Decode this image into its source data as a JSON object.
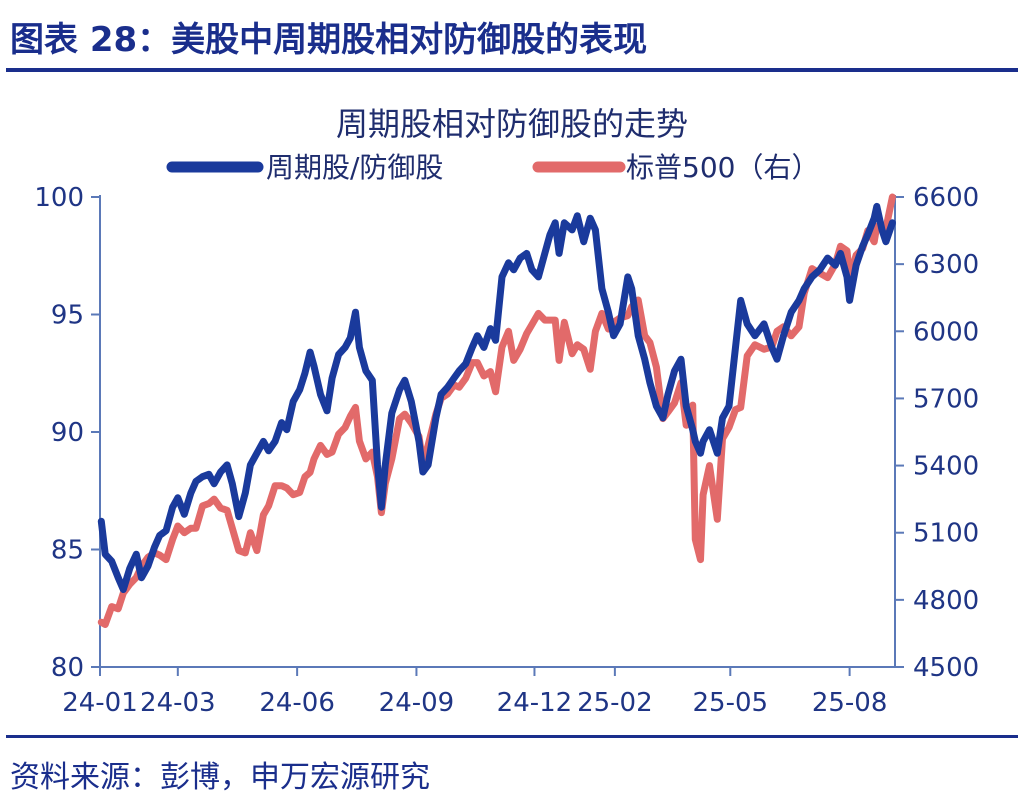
{
  "figure": {
    "title": "图表 28：美股中周期股相对防御股的表现",
    "source": "资料来源：彭博，申万宏源研究"
  },
  "chart_data": {
    "type": "line",
    "title": "周期股相对防御股的走势",
    "legend_position": "top",
    "grid": false,
    "x_axis": {
      "type": "date",
      "range": [
        "2024-01-01",
        "2025-09-05"
      ],
      "tick_labels": [
        "24-01",
        "24-03",
        "24-06",
        "24-09",
        "24-12",
        "25-02",
        "25-05",
        "25-08"
      ],
      "tick_dates": [
        "2024-01-01",
        "2024-03-01",
        "2024-06-01",
        "2024-09-01",
        "2024-12-01",
        "2025-02-01",
        "2025-05-01",
        "2025-08-01"
      ]
    },
    "y_axis_left": {
      "min": 80,
      "max": 100,
      "ticks": [
        100,
        95,
        90,
        85,
        80
      ]
    },
    "y_axis_right": {
      "min": 4500,
      "max": 6600,
      "ticks": [
        6600,
        6300,
        6000,
        5700,
        5400,
        5100,
        4800,
        4500
      ]
    },
    "series": [
      {
        "name": "周期股/防御股",
        "axis": "left",
        "color": "#1a3a9c",
        "points": [
          [
            "2024-01-02",
            86.2
          ],
          [
            "2024-01-05",
            84.8
          ],
          [
            "2024-01-10",
            84.5
          ],
          [
            "2024-01-15",
            83.8
          ],
          [
            "2024-01-19",
            83.3
          ],
          [
            "2024-01-24",
            84.2
          ],
          [
            "2024-01-29",
            84.8
          ],
          [
            "2024-02-02",
            83.8
          ],
          [
            "2024-02-07",
            84.3
          ],
          [
            "2024-02-12",
            85.1
          ],
          [
            "2024-02-16",
            85.6
          ],
          [
            "2024-02-21",
            85.8
          ],
          [
            "2024-02-26",
            86.8
          ],
          [
            "2024-03-01",
            87.2
          ],
          [
            "2024-03-06",
            86.5
          ],
          [
            "2024-03-11",
            87.4
          ],
          [
            "2024-03-15",
            87.9
          ],
          [
            "2024-03-20",
            88.1
          ],
          [
            "2024-03-25",
            88.2
          ],
          [
            "2024-03-29",
            87.8
          ],
          [
            "2024-04-03",
            88.3
          ],
          [
            "2024-04-08",
            88.6
          ],
          [
            "2024-04-12",
            87.8
          ],
          [
            "2024-04-17",
            86.4
          ],
          [
            "2024-04-22",
            87.4
          ],
          [
            "2024-04-26",
            88.6
          ],
          [
            "2024-05-01",
            89.1
          ],
          [
            "2024-05-06",
            89.6
          ],
          [
            "2024-05-10",
            89.2
          ],
          [
            "2024-05-15",
            89.6
          ],
          [
            "2024-05-20",
            90.4
          ],
          [
            "2024-05-24",
            90.1
          ],
          [
            "2024-05-29",
            91.3
          ],
          [
            "2024-06-03",
            91.8
          ],
          [
            "2024-06-07",
            92.5
          ],
          [
            "2024-06-11",
            93.4
          ],
          [
            "2024-06-14",
            92.8
          ],
          [
            "2024-06-19",
            91.6
          ],
          [
            "2024-06-24",
            90.9
          ],
          [
            "2024-06-28",
            92.3
          ],
          [
            "2024-07-03",
            93.3
          ],
          [
            "2024-07-08",
            93.6
          ],
          [
            "2024-07-12",
            94.0
          ],
          [
            "2024-07-16",
            95.1
          ],
          [
            "2024-07-19",
            93.6
          ],
          [
            "2024-07-24",
            92.6
          ],
          [
            "2024-07-29",
            92.2
          ],
          [
            "2024-08-02",
            88.6
          ],
          [
            "2024-08-05",
            86.8
          ],
          [
            "2024-08-08",
            88.6
          ],
          [
            "2024-08-13",
            90.8
          ],
          [
            "2024-08-19",
            91.8
          ],
          [
            "2024-08-23",
            92.2
          ],
          [
            "2024-08-28",
            91.3
          ],
          [
            "2024-09-03",
            89.6
          ],
          [
            "2024-09-06",
            88.3
          ],
          [
            "2024-09-10",
            88.6
          ],
          [
            "2024-09-16",
            90.6
          ],
          [
            "2024-09-20",
            91.6
          ],
          [
            "2024-09-25",
            91.9
          ],
          [
            "2024-09-30",
            92.3
          ],
          [
            "2024-10-04",
            92.6
          ],
          [
            "2024-10-09",
            92.9
          ],
          [
            "2024-10-14",
            93.6
          ],
          [
            "2024-10-18",
            94.1
          ],
          [
            "2024-10-23",
            93.6
          ],
          [
            "2024-10-28",
            94.4
          ],
          [
            "2024-11-01",
            93.9
          ],
          [
            "2024-11-06",
            96.6
          ],
          [
            "2024-11-11",
            97.2
          ],
          [
            "2024-11-15",
            96.9
          ],
          [
            "2024-11-20",
            97.4
          ],
          [
            "2024-11-25",
            97.6
          ],
          [
            "2024-11-29",
            96.9
          ],
          [
            "2024-12-04",
            96.6
          ],
          [
            "2024-12-09",
            97.6
          ],
          [
            "2024-12-13",
            98.4
          ],
          [
            "2024-12-17",
            98.9
          ],
          [
            "2024-12-20",
            97.6
          ],
          [
            "2024-12-24",
            98.9
          ],
          [
            "2024-12-30",
            98.6
          ],
          [
            "2025-01-03",
            99.2
          ],
          [
            "2025-01-08",
            98.1
          ],
          [
            "2025-01-13",
            99.1
          ],
          [
            "2025-01-17",
            98.6
          ],
          [
            "2025-01-22",
            96.1
          ],
          [
            "2025-01-27",
            95.1
          ],
          [
            "2025-01-31",
            94.1
          ],
          [
            "2025-02-05",
            94.6
          ],
          [
            "2025-02-11",
            96.6
          ],
          [
            "2025-02-14",
            96.1
          ],
          [
            "2025-02-19",
            94.1
          ],
          [
            "2025-02-24",
            93.1
          ],
          [
            "2025-02-28",
            92.1
          ],
          [
            "2025-03-05",
            91.1
          ],
          [
            "2025-03-10",
            90.6
          ],
          [
            "2025-03-14",
            91.6
          ],
          [
            "2025-03-19",
            92.6
          ],
          [
            "2025-03-24",
            93.1
          ],
          [
            "2025-03-28",
            91.1
          ],
          [
            "2025-04-02",
            90.1
          ],
          [
            "2025-04-04",
            89.6
          ],
          [
            "2025-04-08",
            89.1
          ],
          [
            "2025-04-10",
            89.6
          ],
          [
            "2025-04-15",
            90.1
          ],
          [
            "2025-04-21",
            89.1
          ],
          [
            "2025-04-25",
            90.6
          ],
          [
            "2025-04-30",
            91.1
          ],
          [
            "2025-05-05",
            93.6
          ],
          [
            "2025-05-09",
            95.6
          ],
          [
            "2025-05-14",
            94.6
          ],
          [
            "2025-05-20",
            94.1
          ],
          [
            "2025-05-27",
            94.6
          ],
          [
            "2025-06-02",
            93.6
          ],
          [
            "2025-06-06",
            93.1
          ],
          [
            "2025-06-11",
            94.1
          ],
          [
            "2025-06-17",
            95.1
          ],
          [
            "2025-06-23",
            95.6
          ],
          [
            "2025-06-27",
            96.1
          ],
          [
            "2025-07-03",
            96.6
          ],
          [
            "2025-07-09",
            96.9
          ],
          [
            "2025-07-15",
            97.4
          ],
          [
            "2025-07-21",
            97.1
          ],
          [
            "2025-07-25",
            97.6
          ],
          [
            "2025-07-30",
            96.6
          ],
          [
            "2025-08-01",
            95.6
          ],
          [
            "2025-08-06",
            97.1
          ],
          [
            "2025-08-11",
            97.9
          ],
          [
            "2025-08-15",
            98.4
          ],
          [
            "2025-08-20",
            99.1
          ],
          [
            "2025-08-22",
            99.6
          ],
          [
            "2025-08-26",
            98.6
          ],
          [
            "2025-08-29",
            98.1
          ],
          [
            "2025-09-03",
            98.9
          ]
        ]
      },
      {
        "name": "标普500（右）",
        "axis": "right",
        "color": "#e26a6a",
        "points": [
          [
            "2024-01-02",
            4700
          ],
          [
            "2024-01-05",
            4690
          ],
          [
            "2024-01-10",
            4770
          ],
          [
            "2024-01-15",
            4760
          ],
          [
            "2024-01-19",
            4830
          ],
          [
            "2024-01-24",
            4870
          ],
          [
            "2024-01-29",
            4900
          ],
          [
            "2024-02-02",
            4950
          ],
          [
            "2024-02-07",
            4990
          ],
          [
            "2024-02-12",
            5010
          ],
          [
            "2024-02-16",
            5000
          ],
          [
            "2024-02-21",
            4980
          ],
          [
            "2024-02-26",
            5070
          ],
          [
            "2024-03-01",
            5130
          ],
          [
            "2024-03-06",
            5100
          ],
          [
            "2024-03-11",
            5120
          ],
          [
            "2024-03-15",
            5120
          ],
          [
            "2024-03-20",
            5220
          ],
          [
            "2024-03-25",
            5230
          ],
          [
            "2024-03-29",
            5250
          ],
          [
            "2024-04-03",
            5210
          ],
          [
            "2024-04-08",
            5200
          ],
          [
            "2024-04-12",
            5120
          ],
          [
            "2024-04-17",
            5020
          ],
          [
            "2024-04-22",
            5010
          ],
          [
            "2024-04-26",
            5100
          ],
          [
            "2024-05-01",
            5020
          ],
          [
            "2024-05-06",
            5180
          ],
          [
            "2024-05-10",
            5220
          ],
          [
            "2024-05-15",
            5310
          ],
          [
            "2024-05-20",
            5310
          ],
          [
            "2024-05-24",
            5300
          ],
          [
            "2024-05-29",
            5270
          ],
          [
            "2024-06-03",
            5280
          ],
          [
            "2024-06-07",
            5350
          ],
          [
            "2024-06-11",
            5370
          ],
          [
            "2024-06-14",
            5430
          ],
          [
            "2024-06-19",
            5490
          ],
          [
            "2024-06-24",
            5450
          ],
          [
            "2024-06-28",
            5460
          ],
          [
            "2024-07-03",
            5540
          ],
          [
            "2024-07-08",
            5570
          ],
          [
            "2024-07-12",
            5620
          ],
          [
            "2024-07-16",
            5660
          ],
          [
            "2024-07-19",
            5510
          ],
          [
            "2024-07-24",
            5430
          ],
          [
            "2024-07-29",
            5460
          ],
          [
            "2024-08-02",
            5350
          ],
          [
            "2024-08-05",
            5190
          ],
          [
            "2024-08-08",
            5320
          ],
          [
            "2024-08-13",
            5430
          ],
          [
            "2024-08-19",
            5610
          ],
          [
            "2024-08-23",
            5630
          ],
          [
            "2024-08-28",
            5590
          ],
          [
            "2024-09-03",
            5530
          ],
          [
            "2024-09-06",
            5410
          ],
          [
            "2024-09-10",
            5490
          ],
          [
            "2024-09-16",
            5630
          ],
          [
            "2024-09-20",
            5700
          ],
          [
            "2024-09-25",
            5720
          ],
          [
            "2024-09-30",
            5760
          ],
          [
            "2024-10-04",
            5750
          ],
          [
            "2024-10-09",
            5790
          ],
          [
            "2024-10-14",
            5860
          ],
          [
            "2024-10-18",
            5860
          ],
          [
            "2024-10-23",
            5800
          ],
          [
            "2024-10-28",
            5820
          ],
          [
            "2024-11-01",
            5730
          ],
          [
            "2024-11-06",
            5930
          ],
          [
            "2024-11-11",
            6000
          ],
          [
            "2024-11-15",
            5870
          ],
          [
            "2024-11-20",
            5920
          ],
          [
            "2024-11-25",
            5990
          ],
          [
            "2024-11-29",
            6030
          ],
          [
            "2024-12-04",
            6080
          ],
          [
            "2024-12-09",
            6050
          ],
          [
            "2024-12-13",
            6050
          ],
          [
            "2024-12-17",
            6050
          ],
          [
            "2024-12-20",
            5870
          ],
          [
            "2024-12-24",
            6040
          ],
          [
            "2024-12-30",
            5900
          ],
          [
            "2025-01-03",
            5940
          ],
          [
            "2025-01-08",
            5920
          ],
          [
            "2025-01-13",
            5830
          ],
          [
            "2025-01-17",
            6000
          ],
          [
            "2025-01-22",
            6080
          ],
          [
            "2025-01-27",
            6010
          ],
          [
            "2025-01-31",
            6040
          ],
          [
            "2025-02-05",
            6060
          ],
          [
            "2025-02-11",
            6070
          ],
          [
            "2025-02-14",
            6110
          ],
          [
            "2025-02-19",
            6140
          ],
          [
            "2025-02-24",
            5980
          ],
          [
            "2025-02-28",
            5950
          ],
          [
            "2025-03-05",
            5840
          ],
          [
            "2025-03-10",
            5610
          ],
          [
            "2025-03-14",
            5640
          ],
          [
            "2025-03-19",
            5680
          ],
          [
            "2025-03-24",
            5770
          ],
          [
            "2025-03-28",
            5580
          ],
          [
            "2025-04-02",
            5670
          ],
          [
            "2025-04-04",
            5070
          ],
          [
            "2025-04-08",
            4980
          ],
          [
            "2025-04-10",
            5270
          ],
          [
            "2025-04-15",
            5400
          ],
          [
            "2025-04-21",
            5160
          ],
          [
            "2025-04-25",
            5520
          ],
          [
            "2025-04-30",
            5570
          ],
          [
            "2025-05-05",
            5650
          ],
          [
            "2025-05-09",
            5660
          ],
          [
            "2025-05-14",
            5890
          ],
          [
            "2025-05-20",
            5940
          ],
          [
            "2025-05-27",
            5920
          ],
          [
            "2025-06-02",
            5930
          ],
          [
            "2025-06-06",
            6000
          ],
          [
            "2025-06-11",
            6020
          ],
          [
            "2025-06-17",
            5980
          ],
          [
            "2025-06-23",
            6020
          ],
          [
            "2025-06-27",
            6170
          ],
          [
            "2025-07-03",
            6280
          ],
          [
            "2025-07-09",
            6260
          ],
          [
            "2025-07-15",
            6240
          ],
          [
            "2025-07-21",
            6300
          ],
          [
            "2025-07-25",
            6380
          ],
          [
            "2025-07-30",
            6360
          ],
          [
            "2025-08-01",
            6240
          ],
          [
            "2025-08-06",
            6340
          ],
          [
            "2025-08-11",
            6370
          ],
          [
            "2025-08-15",
            6450
          ],
          [
            "2025-08-20",
            6400
          ],
          [
            "2025-08-22",
            6470
          ],
          [
            "2025-08-26",
            6460
          ],
          [
            "2025-08-29",
            6460
          ],
          [
            "2025-09-03",
            6600
          ]
        ]
      }
    ]
  }
}
